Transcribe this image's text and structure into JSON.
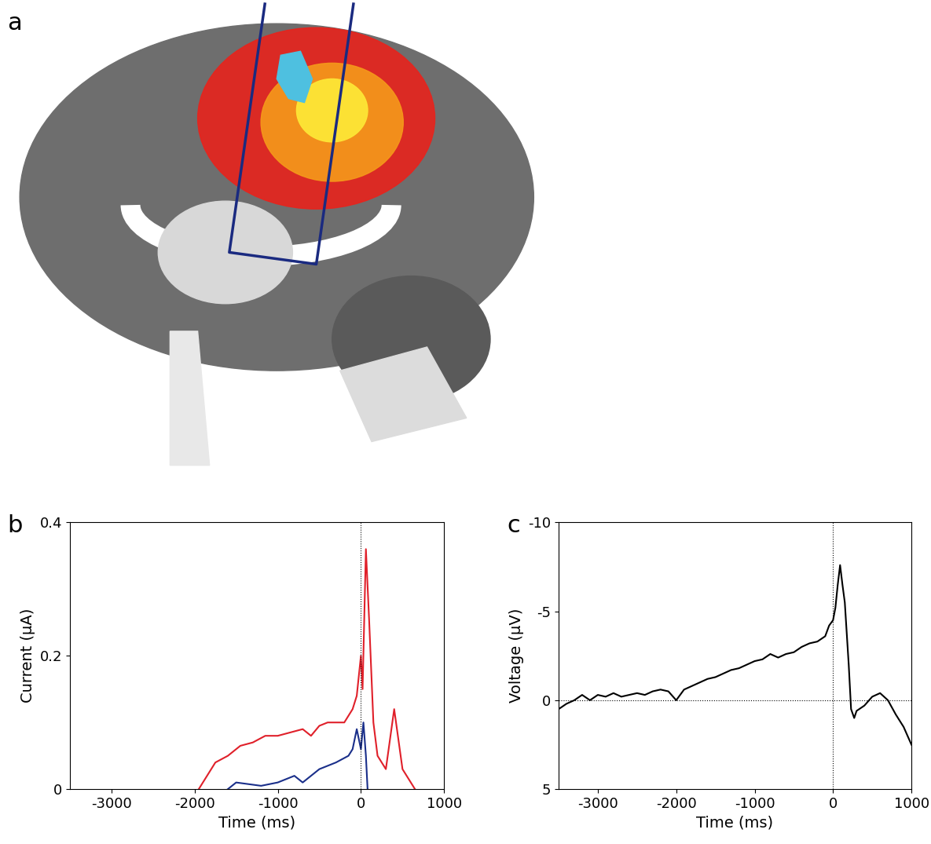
{
  "panel_a": {
    "label": "a"
  },
  "chart_data": [
    {
      "type": "line",
      "title": "b",
      "xlabel": "Time (ms)",
      "ylabel": "Current (μA)",
      "xlim": [
        -3500,
        1000
      ],
      "xticks": [
        -3000,
        -2000,
        -1000,
        0,
        1000
      ],
      "ylim": [
        0,
        0.4
      ],
      "yticks": [
        0,
        0.2,
        0.4
      ],
      "vline": 0,
      "series": [
        {
          "color": "#e0202a",
          "x": [
            -1950,
            -1850,
            -1750,
            -1600,
            -1450,
            -1300,
            -1150,
            -1000,
            -850,
            -700,
            -600,
            -500,
            -400,
            -300,
            -200,
            -100,
            -50,
            0,
            20,
            60,
            100,
            150,
            200,
            300,
            400,
            500,
            650
          ],
          "values": [
            0,
            0.02,
            0.04,
            0.05,
            0.065,
            0.07,
            0.08,
            0.08,
            0.085,
            0.09,
            0.08,
            0.095,
            0.1,
            0.1,
            0.1,
            0.12,
            0.14,
            0.2,
            0.15,
            0.36,
            0.25,
            0.1,
            0.05,
            0.03,
            0.12,
            0.03,
            0
          ]
        },
        {
          "color": "#1a2f8a",
          "x": [
            -1600,
            -1500,
            -1200,
            -1000,
            -800,
            -700,
            -500,
            -300,
            -150,
            -100,
            -50,
            0,
            30,
            60,
            80
          ],
          "values": [
            0,
            0.01,
            0.005,
            0.01,
            0.02,
            0.01,
            0.03,
            0.04,
            0.05,
            0.06,
            0.09,
            0.06,
            0.1,
            0.05,
            0
          ]
        }
      ]
    },
    {
      "type": "line",
      "title": "c",
      "xlabel": "Time (ms)",
      "ylabel": "Voltage (μV)",
      "xlim": [
        -3500,
        1000
      ],
      "xticks": [
        -3000,
        -2000,
        -1000,
        0,
        1000
      ],
      "ylim": [
        5,
        -10
      ],
      "yticks": [
        -10,
        -5,
        0,
        5
      ],
      "vline": 0,
      "hline": 0,
      "series": [
        {
          "color": "#000000",
          "x": [
            -3500,
            -3400,
            -3300,
            -3200,
            -3100,
            -3000,
            -2900,
            -2800,
            -2700,
            -2600,
            -2500,
            -2400,
            -2300,
            -2200,
            -2100,
            -2000,
            -1900,
            -1800,
            -1700,
            -1600,
            -1500,
            -1400,
            -1300,
            -1200,
            -1100,
            -1000,
            -900,
            -800,
            -700,
            -600,
            -500,
            -400,
            -300,
            -200,
            -100,
            -50,
            0,
            30,
            60,
            90,
            120,
            150,
            200,
            230,
            270,
            300,
            400,
            500,
            600,
            700,
            800,
            900,
            1000
          ],
          "values": [
            0.5,
            0.2,
            0,
            -0.3,
            0,
            -0.3,
            -0.2,
            -0.4,
            -0.2,
            -0.3,
            -0.4,
            -0.3,
            -0.5,
            -0.6,
            -0.5,
            0,
            -0.6,
            -0.8,
            -1.0,
            -1.2,
            -1.3,
            -1.5,
            -1.7,
            -1.8,
            -2.0,
            -2.2,
            -2.3,
            -2.6,
            -2.4,
            -2.6,
            -2.7,
            -3.0,
            -3.2,
            -3.3,
            -3.6,
            -4.2,
            -4.5,
            -5.2,
            -6.5,
            -7.6,
            -6.5,
            -5.5,
            -2.0,
            0.5,
            1.0,
            0.6,
            0.3,
            -0.2,
            -0.4,
            0,
            0.8,
            1.5,
            2.5
          ]
        }
      ]
    }
  ]
}
